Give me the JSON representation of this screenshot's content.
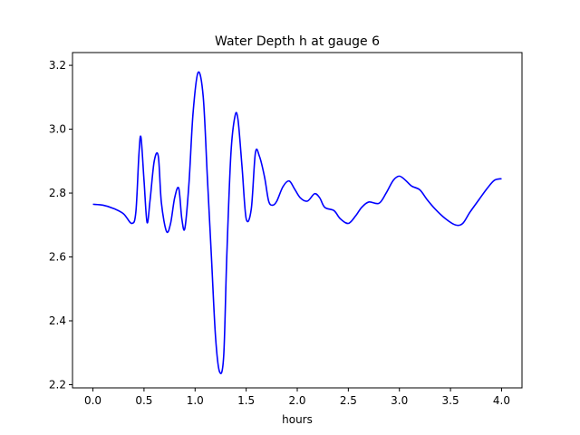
{
  "chart_data": {
    "type": "line",
    "title": "Water Depth h at gauge 6",
    "xlabel": "hours",
    "ylabel": "",
    "xlim": [
      -0.2,
      4.2
    ],
    "ylim": [
      2.19,
      3.24
    ],
    "grid": false,
    "xticks": [
      0.0,
      0.5,
      1.0,
      1.5,
      2.0,
      2.5,
      3.0,
      3.5,
      4.0
    ],
    "xtick_labels": [
      "0.0",
      "0.5",
      "1.0",
      "1.5",
      "2.0",
      "2.5",
      "3.0",
      "3.5",
      "4.0"
    ],
    "yticks": [
      2.2,
      2.4,
      2.6,
      2.8,
      3.0,
      3.2
    ],
    "ytick_labels": [
      "2.2",
      "2.4",
      "2.6",
      "2.8",
      "3.0",
      "3.2"
    ],
    "series": [
      {
        "color": "#0000ff",
        "x": [
          0.0,
          0.1,
          0.2,
          0.3,
          0.38,
          0.42,
          0.45,
          0.47,
          0.5,
          0.53,
          0.56,
          0.6,
          0.64,
          0.67,
          0.72,
          0.76,
          0.8,
          0.84,
          0.87,
          0.9,
          0.94,
          0.98,
          1.03,
          1.08,
          1.12,
          1.16,
          1.2,
          1.24,
          1.28,
          1.31,
          1.35,
          1.39,
          1.42,
          1.46,
          1.5,
          1.55,
          1.59,
          1.63,
          1.68,
          1.72,
          1.76,
          1.8,
          1.86,
          1.92,
          1.97,
          2.03,
          2.1,
          2.17,
          2.22,
          2.27,
          2.36,
          2.42,
          2.5,
          2.57,
          2.63,
          2.7,
          2.8,
          2.87,
          2.94,
          3.0,
          3.06,
          3.12,
          3.2,
          3.27,
          3.35,
          3.45,
          3.55,
          3.62,
          3.69,
          3.78,
          3.86,
          3.93,
          4.0
        ],
        "y": [
          2.765,
          2.762,
          2.752,
          2.735,
          2.705,
          2.74,
          2.92,
          2.975,
          2.84,
          2.708,
          2.78,
          2.9,
          2.915,
          2.77,
          2.68,
          2.705,
          2.785,
          2.815,
          2.72,
          2.69,
          2.83,
          3.05,
          3.178,
          3.1,
          2.85,
          2.6,
          2.35,
          2.24,
          2.29,
          2.6,
          2.92,
          3.04,
          3.03,
          2.88,
          2.72,
          2.75,
          2.925,
          2.915,
          2.85,
          2.775,
          2.762,
          2.775,
          2.82,
          2.838,
          2.815,
          2.785,
          2.775,
          2.798,
          2.785,
          2.755,
          2.745,
          2.72,
          2.705,
          2.728,
          2.755,
          2.772,
          2.768,
          2.8,
          2.84,
          2.853,
          2.84,
          2.822,
          2.81,
          2.78,
          2.75,
          2.72,
          2.7,
          2.705,
          2.74,
          2.78,
          2.815,
          2.84,
          2.845
        ]
      }
    ]
  }
}
